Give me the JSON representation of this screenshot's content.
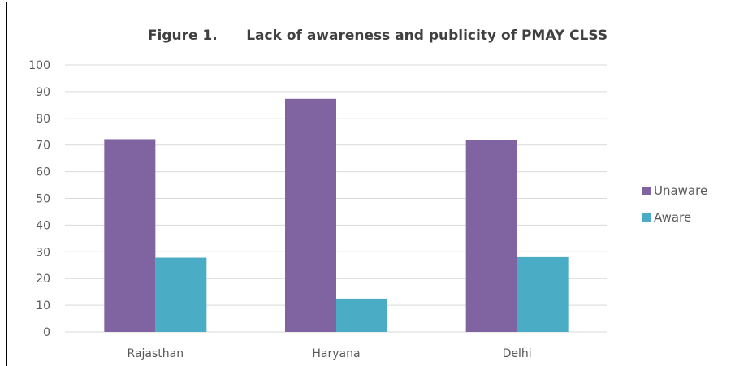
{
  "chart_data": {
    "type": "bar",
    "title": "Figure 1.      Lack of awareness and publicity of PMAY CLSS",
    "categories": [
      "Rajasthan",
      "Haryana",
      "Delhi"
    ],
    "series": [
      {
        "name": "Unaware",
        "values": [
          72.2,
          87.3,
          72.0
        ],
        "color": "#8064a2"
      },
      {
        "name": "Aware",
        "values": [
          27.8,
          12.5,
          28.0
        ],
        "color": "#4bacc6"
      }
    ],
    "y_ticks": [
      "0",
      "10",
      "20",
      "30",
      "40",
      "50",
      "60",
      "70",
      "80",
      "90",
      "100"
    ],
    "ylim": [
      0,
      100
    ],
    "grid": true,
    "legend_position": "right",
    "colors": {
      "gridline": "#d9d9d9",
      "axis_text": "#595959",
      "title_text": "#404040"
    }
  }
}
